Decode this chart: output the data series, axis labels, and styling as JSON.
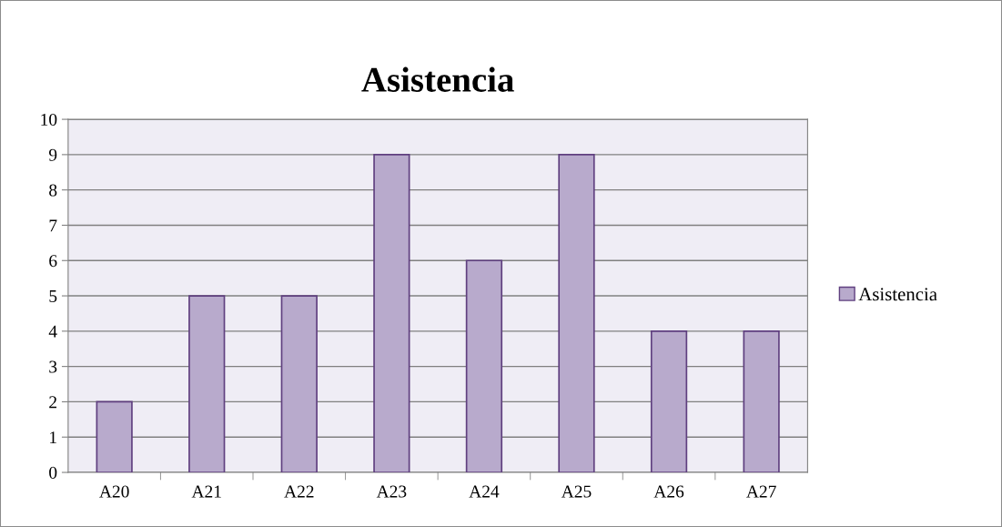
{
  "chart_data": {
    "type": "bar",
    "title": "Asistencia",
    "categories": [
      "A20",
      "A21",
      "A22",
      "A23",
      "A24",
      "A25",
      "A26",
      "A27"
    ],
    "series": [
      {
        "name": "Asistencia",
        "color": "#b8aacc",
        "values": [
          2,
          5,
          5,
          9,
          6,
          9,
          4,
          4
        ]
      }
    ],
    "ylim": [
      0,
      10
    ],
    "yticks": [
      0,
      1,
      2,
      3,
      4,
      5,
      6,
      7,
      8,
      9,
      10
    ],
    "grid": "y",
    "legend": "right"
  }
}
